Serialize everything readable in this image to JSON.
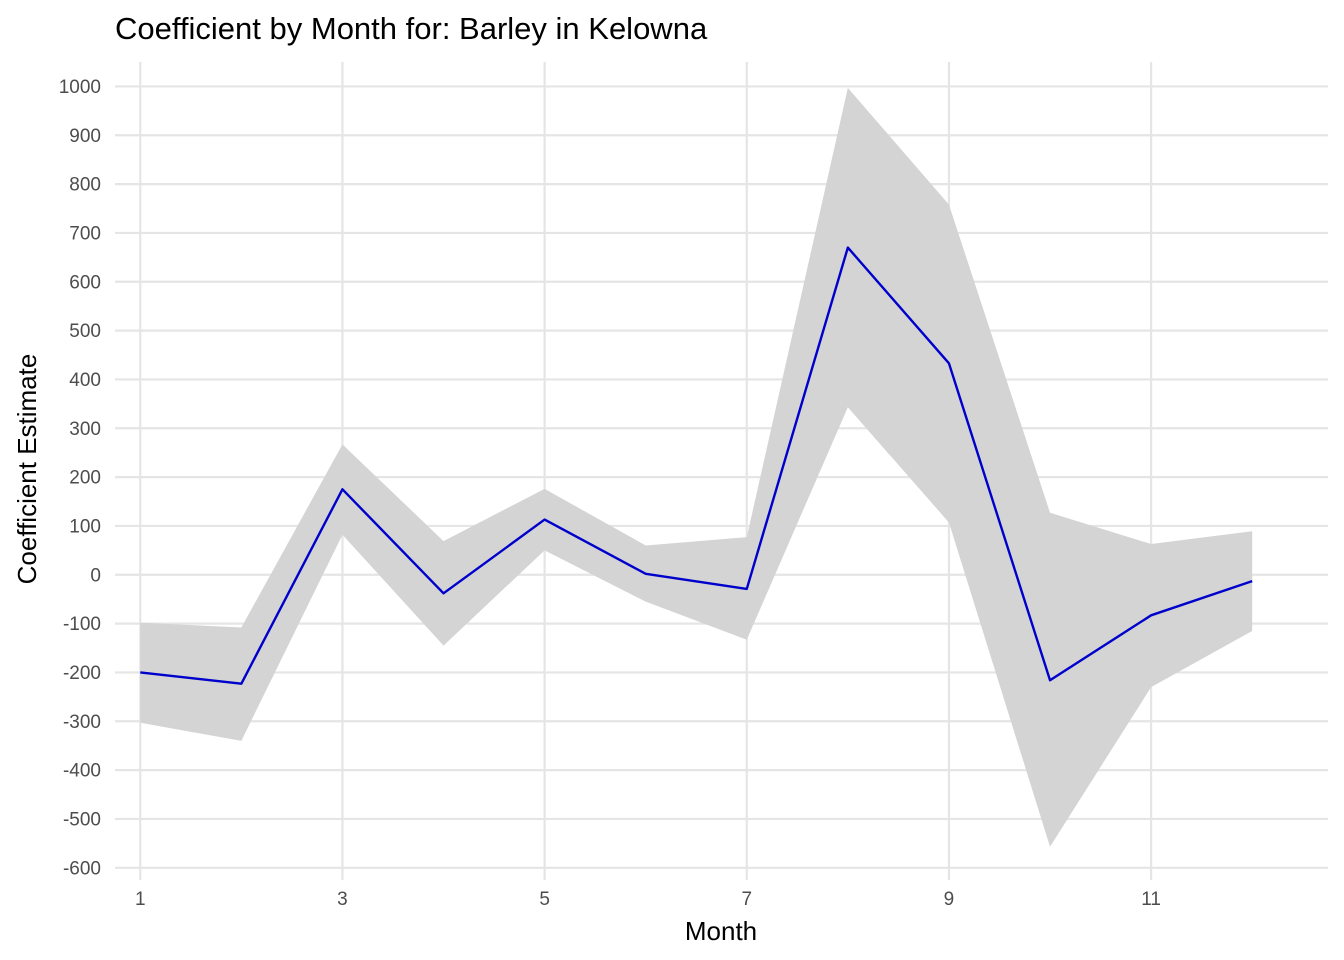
{
  "chart_data": {
    "type": "line",
    "title": "Coefficient by Month for: Barley in Kelowna",
    "xlabel": "Month",
    "ylabel": "Coefficient Estimate",
    "xlim": [
      0.75,
      12.75
    ],
    "ylim": [
      -625,
      1050
    ],
    "x_ticks": [
      1,
      3,
      5,
      7,
      9,
      11
    ],
    "x_tick_labels": [
      "1",
      "3",
      "5",
      "7",
      "9",
      "11"
    ],
    "y_ticks": [
      -600,
      -500,
      -400,
      -300,
      -200,
      -100,
      0,
      100,
      200,
      300,
      400,
      500,
      600,
      700,
      800,
      900,
      1000
    ],
    "y_tick_labels": [
      "-600",
      "-500",
      "-400",
      "-300",
      "-200",
      "-100",
      "0",
      "100",
      "200",
      "300",
      "400",
      "500",
      "600",
      "700",
      "800",
      "900",
      "1000"
    ],
    "grid": true,
    "legend": "none",
    "x": [
      1,
      2,
      3,
      4,
      5,
      6,
      7,
      8,
      9,
      10,
      11,
      12
    ],
    "series": [
      {
        "values": [
          -200,
          -223,
          175,
          -38,
          113,
          2,
          -29,
          670,
          433,
          -216,
          -83,
          -13
        ],
        "lower": [
          -303,
          -340,
          82,
          -145,
          50,
          -55,
          -133,
          343,
          107,
          -557,
          -230,
          -115
        ],
        "upper": [
          -98,
          -108,
          267,
          69,
          176,
          60,
          77,
          997,
          758,
          127,
          63,
          89
        ],
        "line_color": "#0000CC",
        "band_color": "#D4D4D4"
      }
    ],
    "grid_color": "#E5E5E5"
  }
}
